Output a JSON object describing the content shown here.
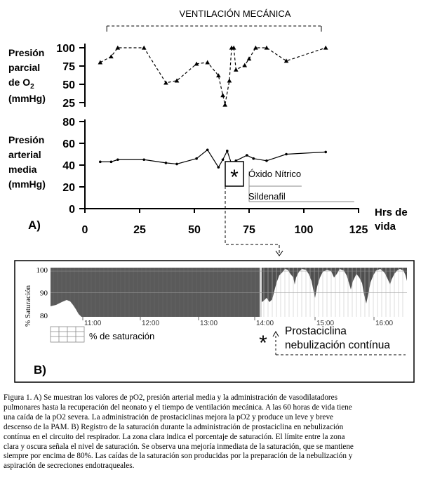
{
  "chart_data": [
    {
      "type": "line",
      "title": "",
      "ylabel_lines": [
        "Presión",
        "parcial",
        "de O",
        "2",
        "(mmHg)"
      ],
      "yticks": [
        "100",
        "75",
        "50",
        "25"
      ],
      "ylim": [
        25,
        100
      ],
      "marker": "triangle",
      "line_style": "dashed",
      "series": [
        {
          "points": [
            [
              7,
              80
            ],
            [
              12,
              88
            ],
            [
              15,
              100
            ],
            [
              27,
              100
            ],
            [
              37,
              52
            ],
            [
              42,
              55
            ],
            [
              51,
              78
            ],
            [
              56,
              80
            ],
            [
              61,
              62
            ],
            [
              63,
              35
            ],
            [
              64,
              22
            ],
            [
              66,
              55
            ],
            [
              67,
              100
            ],
            [
              68,
              100
            ],
            [
              69,
              70
            ],
            [
              73,
              76
            ],
            [
              75,
              85
            ],
            [
              78,
              100
            ],
            [
              83,
              100
            ],
            [
              92,
              82
            ],
            [
              110,
              100
            ]
          ]
        }
      ]
    },
    {
      "type": "line",
      "title": "",
      "ylabel_lines": [
        "Presión",
        "arterial",
        "media",
        "(mmHg)"
      ],
      "xlabel_lines": [
        "Hrs de",
        "vida"
      ],
      "xticks": [
        "0",
        "25",
        "50",
        "75",
        "100",
        "125"
      ],
      "xlim": [
        0,
        125
      ],
      "yticks": [
        "80",
        "60",
        "40",
        "20",
        "0"
      ],
      "ylim": [
        0,
        80
      ],
      "marker": "dot",
      "line_style": "solid",
      "series": [
        {
          "points": [
            [
              7,
              43
            ],
            [
              12,
              43
            ],
            [
              15,
              45
            ],
            [
              27,
              45
            ],
            [
              37,
              42
            ],
            [
              42,
              41
            ],
            [
              51,
              46
            ],
            [
              56,
              54
            ],
            [
              61,
              38
            ],
            [
              63,
              45
            ],
            [
              65,
              53
            ],
            [
              67,
              41
            ],
            [
              69,
              44
            ],
            [
              74,
              49
            ],
            [
              77,
              46
            ],
            [
              83,
              44
            ],
            [
              92,
              50
            ],
            [
              110,
              52
            ]
          ]
        }
      ],
      "annotations": {
        "ventilation_label": "VENTILACIÓN MECÁNICA",
        "ventilation_range": [
          10,
          108
        ],
        "nitric_oxide_label": "Óxido Nítrico",
        "nitric_oxide_range": [
          75,
          99
        ],
        "sildenafil_label": "Sildenafil",
        "sildenafil_range": [
          75,
          123
        ],
        "asterisk": "*"
      }
    },
    {
      "type": "area",
      "title": "",
      "ylabel": "% Saturación",
      "yticks": [
        "100",
        "90",
        "80"
      ],
      "ylim": [
        80,
        100
      ],
      "xticks": [
        "11:00",
        "12:00",
        "13:00",
        "14:00",
        "15:00",
        "16:00"
      ],
      "legend_label": "% de saturación",
      "annotation_lines": [
        "Prostaciclina",
        "nebulización contínua"
      ],
      "asterisk": "*"
    }
  ],
  "panel_labels": {
    "a": "A)",
    "b": "B)"
  },
  "caption_lines": [
    "Figura 1. A) Se muestran los valores de pO2, presión arterial media y la administración de vasodilatadores",
    "pulmonares hasta la recuperación del neonato y el tiempo de ventilación mecánica. A las 60 horas de vida tiene",
    "una caída de la pO2 severa. La administración de prostaciclinas mejora la pO2 y produce un leve y breve",
    "descenso de la PAM. B) Registro de la saturación durante la administración de prostaciclina en nebulización",
    "contínua en el circuito del respirador. La zona clara indica el porcentaje de saturación. El límite entre la zona",
    "clara y oscura señala el nivel de saturación. Se observa una mejoría inmediata de la saturación, que se mantiene",
    "siempre por encima de 80%. Las caídas de la saturación son producidas por la preparación de la nebulización y",
    "aspiración de secreciones endotraqueales."
  ],
  "colors": {
    "ink": "#000000",
    "monitor_dark": "#555555",
    "monitor_light": "#ffffff"
  }
}
